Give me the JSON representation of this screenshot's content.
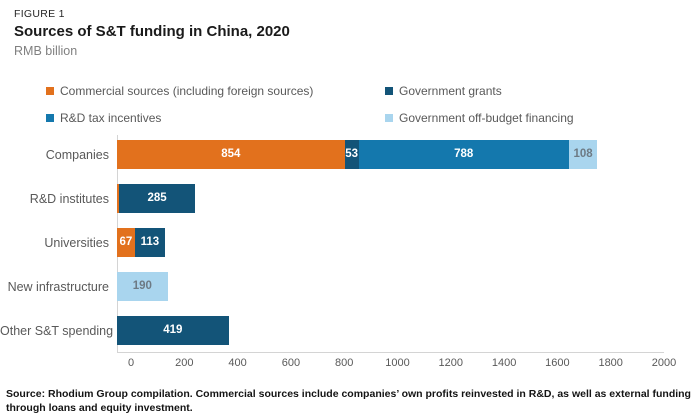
{
  "header": {
    "figure_label": "FIGURE 1",
    "title": "Sources of S&T funding in China, 2020",
    "subtitle": "RMB billion"
  },
  "colors": {
    "commercial": "#e2711d",
    "government_grants": "#135478",
    "rd_tax_incentives": "#1478ad",
    "off_budget": "#a9d5ee",
    "axis_line": "#d4d4d4",
    "text_gray": "#595959",
    "label_on_dark": "#ffffff",
    "label_on_light_blue": "#6d7a84"
  },
  "legend": {
    "items": [
      {
        "label": "Commercial sources (including foreign sources)",
        "color_key": "commercial"
      },
      {
        "label": "Government grants",
        "color_key": "government_grants"
      },
      {
        "label": "R&D tax incentives",
        "color_key": "rd_tax_incentives"
      },
      {
        "label": "Government off-budget financing",
        "color_key": "off_budget"
      }
    ]
  },
  "chart_data": {
    "type": "bar",
    "orientation": "horizontal",
    "stacked": true,
    "title": "Sources of S&T funding in China, 2020",
    "xlabel": "RMB billion",
    "xlim": [
      0,
      2000
    ],
    "x_ticks": [
      0,
      200,
      400,
      600,
      800,
      1000,
      1200,
      1400,
      1600,
      1800,
      2000
    ],
    "grid": false,
    "legend_position": "top",
    "categories": [
      "Companies",
      "R&D institutes",
      "Universities",
      "New infrastructure",
      "Other S&T spending"
    ],
    "series_names": [
      "Commercial sources (including foreign sources)",
      "Government grants",
      "R&D tax incentives",
      "Government off-budget financing"
    ],
    "rows": [
      {
        "category": "Companies",
        "segments": [
          {
            "series": "commercial",
            "value": 854,
            "label": "854"
          },
          {
            "series": "government_grants",
            "value": 53,
            "label": "53"
          },
          {
            "series": "rd_tax_incentives",
            "value": 788,
            "label": "788"
          },
          {
            "series": "off_budget",
            "value": 108,
            "label": "108"
          }
        ]
      },
      {
        "category": "R&D institutes",
        "segments": [
          {
            "series": "commercial",
            "value": 8,
            "label": ""
          },
          {
            "series": "government_grants",
            "value": 285,
            "label": "285"
          }
        ]
      },
      {
        "category": "Universities",
        "segments": [
          {
            "series": "commercial",
            "value": 67,
            "label": "67"
          },
          {
            "series": "government_grants",
            "value": 113,
            "label": "113"
          }
        ]
      },
      {
        "category": "New infrastructure",
        "segments": [
          {
            "series": "off_budget",
            "value": 190,
            "label": "190"
          }
        ]
      },
      {
        "category": "Other S&T spending",
        "segments": [
          {
            "series": "government_grants",
            "value": 419,
            "label": "419"
          }
        ]
      }
    ]
  },
  "footer": {
    "source": "Source: Rhodium Group compilation. Commercial sources include companies’ own profits reinvested in R&D, as well as external funding through loans and equity investment."
  }
}
